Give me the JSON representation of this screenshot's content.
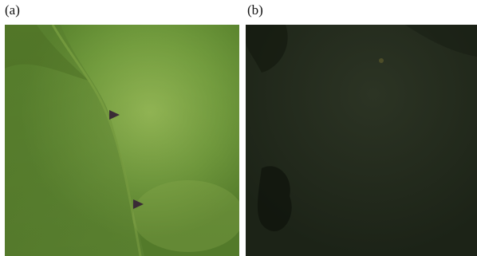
{
  "panels": [
    {
      "label": "(a)",
      "tone": "bright-green",
      "base_color": "#6f9a3c",
      "highlight_color": "#8fb84e",
      "arrowheads": 2,
      "arrow_color": "#3a2b36"
    },
    {
      "label": "(b)",
      "tone": "dark",
      "base_color": "#1f2718",
      "highlight_color": "#2b3322"
    }
  ]
}
